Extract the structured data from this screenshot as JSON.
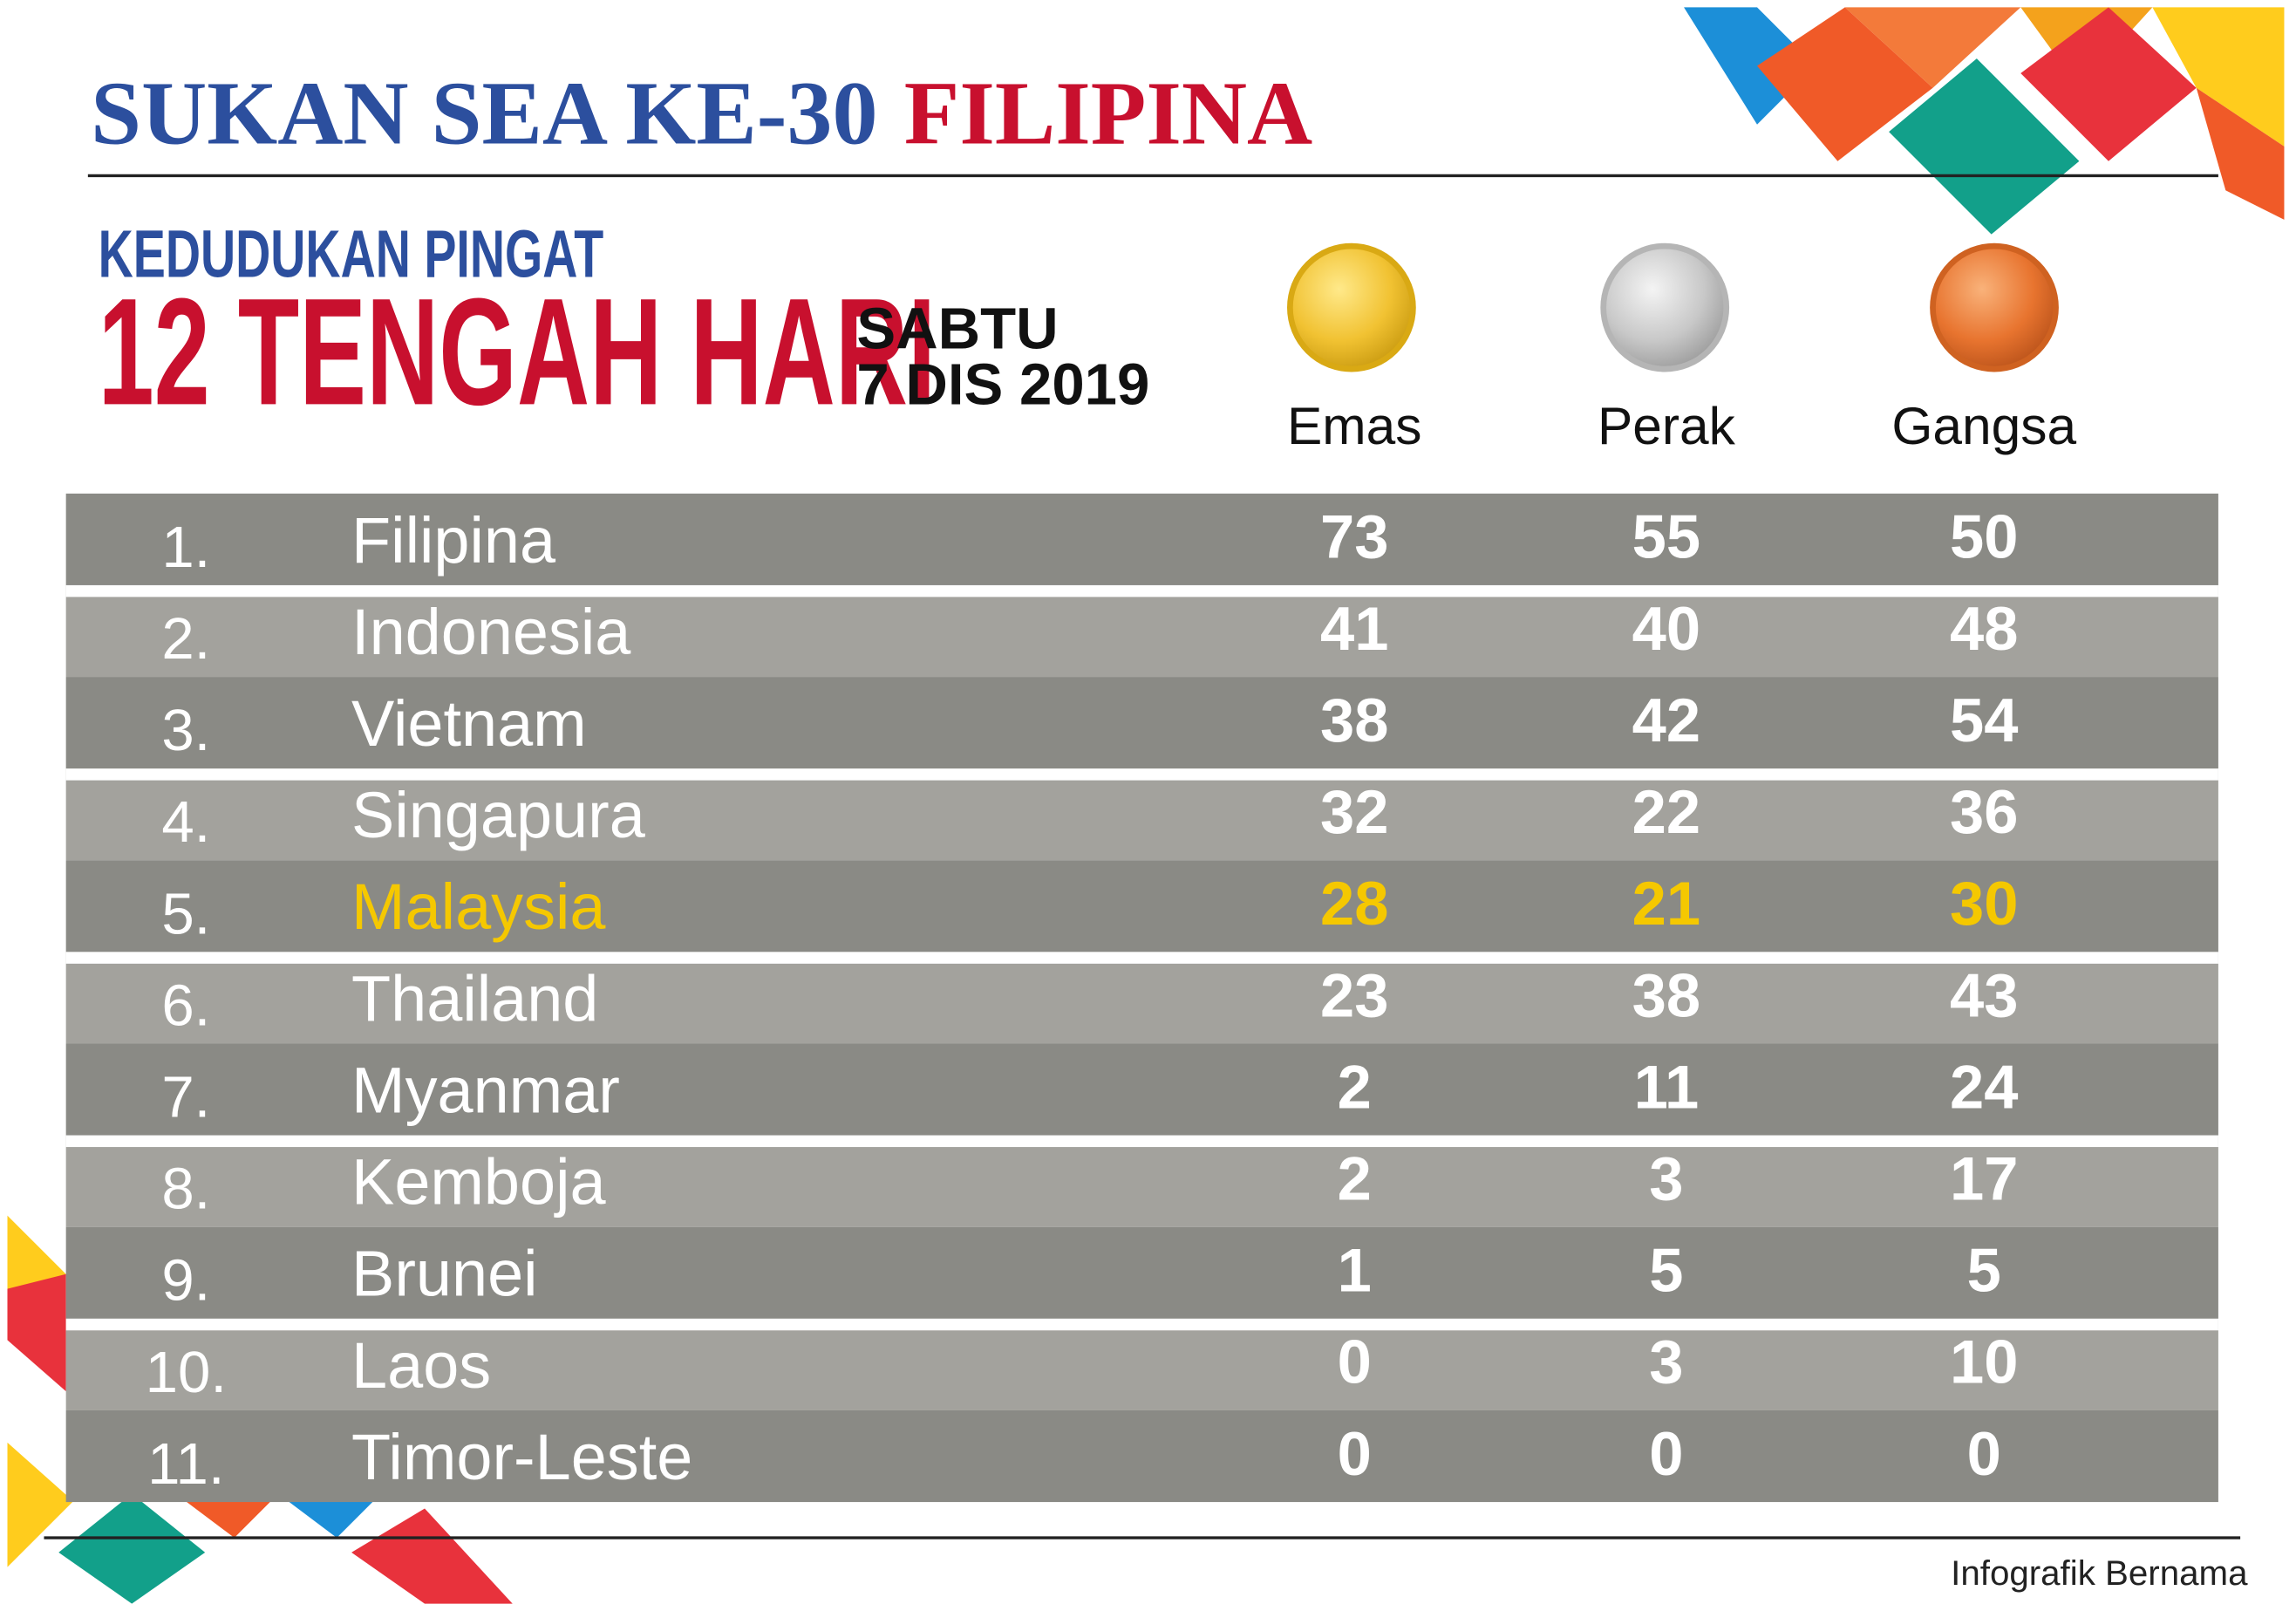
{
  "header": {
    "title_main": "SUKAN SEA KE-30",
    "title_host": "FILIPINA",
    "subtitle": "KEDUDUKAN PINGAT",
    "time": "12 TENGAH HARI",
    "day": "SABTU",
    "date": "7 DIS 2019"
  },
  "table": {
    "columns": [
      "Emas",
      "Perak",
      "Gangsa"
    ],
    "highlight_row": 4,
    "rows": [
      [
        "1.",
        "Filipina",
        73,
        55,
        50
      ],
      [
        "2.",
        "Indonesia",
        41,
        40,
        48
      ],
      [
        "3.",
        "Vietnam",
        38,
        42,
        54
      ],
      [
        "4.",
        "Singapura",
        32,
        22,
        36
      ],
      [
        "5.",
        "Malaysia",
        28,
        21,
        30
      ],
      [
        "6.",
        "Thailand",
        23,
        38,
        43
      ],
      [
        "7.",
        "Myanmar",
        2,
        11,
        24
      ],
      [
        "8.",
        "Kemboja",
        2,
        3,
        17
      ],
      [
        "9.",
        "Brunei",
        1,
        5,
        5
      ],
      [
        "10.",
        "Laos",
        0,
        3,
        10
      ],
      [
        "11.",
        "Timor-Leste",
        0,
        0,
        0
      ]
    ]
  },
  "footer": {
    "credit": "Infografik Bernama"
  }
}
